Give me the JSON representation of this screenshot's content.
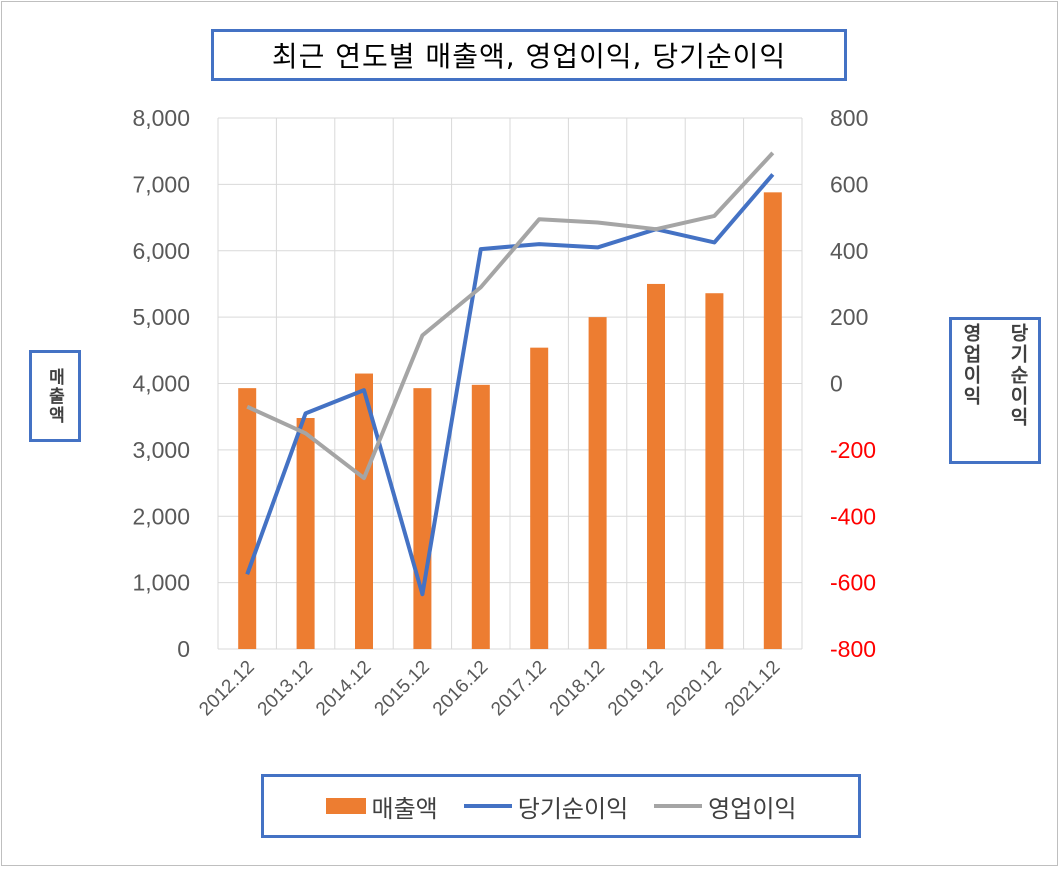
{
  "chart_data": {
    "type": "bar",
    "title": "최근 연도별 매출액, 영업이익, 당기순이익",
    "categories": [
      "2012.12",
      "2013.12",
      "2014.12",
      "2015.12",
      "2016.12",
      "2017.12",
      "2018.12",
      "2019.12",
      "2020.12",
      "2021.12"
    ],
    "ylabel": "매출액",
    "y2label_left": "당기순이익",
    "y2label_right": "영업이익",
    "ylim": [
      0,
      8000
    ],
    "y2lim": [
      -800,
      800
    ],
    "yticks": [
      "0",
      "1,000",
      "2,000",
      "3,000",
      "4,000",
      "5,000",
      "6,000",
      "7,000",
      "8,000"
    ],
    "y2ticks": [
      "-800",
      "-600",
      "-400",
      "-200",
      "0",
      "200",
      "400",
      "600",
      "800"
    ],
    "grid": true,
    "legend_position": "bottom",
    "series": [
      {
        "name": "매출액",
        "type": "bar",
        "axis": "left",
        "color": "#ed7d31",
        "values": [
          3930,
          3480,
          4150,
          3930,
          3980,
          4540,
          5000,
          5500,
          5360,
          6880
        ]
      },
      {
        "name": "당기순이익",
        "type": "line",
        "axis": "right",
        "color": "#4472c4",
        "values": [
          -575,
          -90,
          -20,
          -635,
          405,
          420,
          410,
          465,
          425,
          630
        ]
      },
      {
        "name": "영업이익",
        "type": "line",
        "axis": "right",
        "color": "#a5a5a5",
        "values": [
          -70,
          -150,
          -285,
          145,
          290,
          495,
          485,
          465,
          505,
          695
        ]
      }
    ]
  }
}
